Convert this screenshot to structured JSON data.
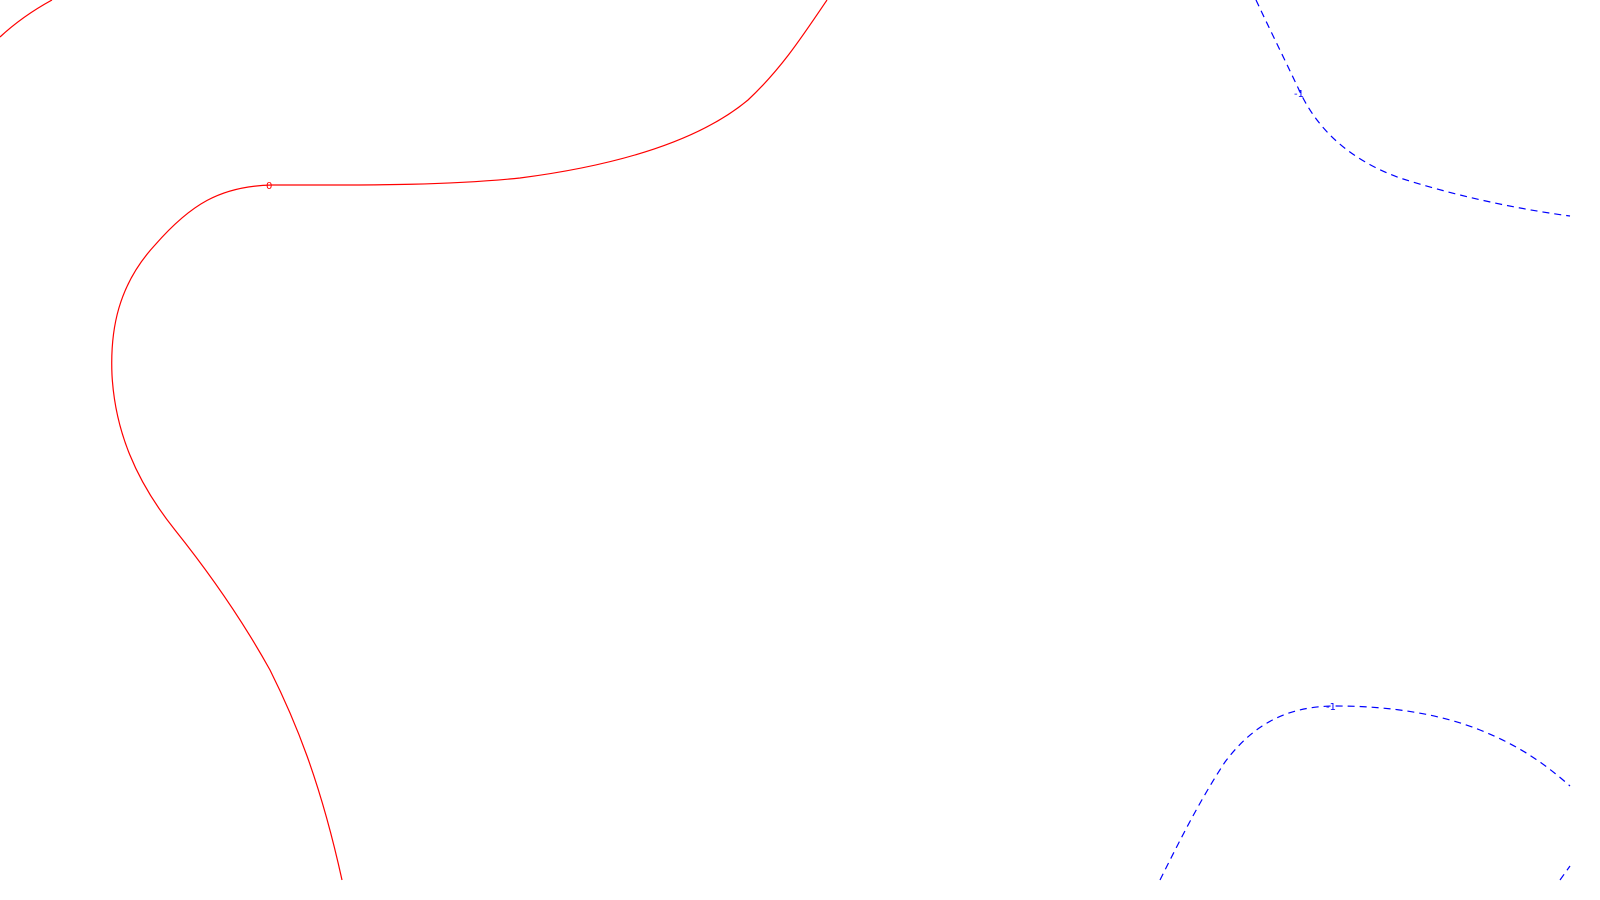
{
  "background_color": "#ffffff",
  "contours": [
    {
      "name": "contour-zero-main",
      "level_label": "0",
      "color": "#ff0000",
      "style": "solid"
    },
    {
      "name": "contour-zero-corner",
      "level_label": "",
      "color": "#ff0000",
      "style": "solid"
    },
    {
      "name": "contour-neg1-top",
      "level_label": "-1",
      "color": "#0000ff",
      "style": "dashed"
    },
    {
      "name": "contour-neg1-bottom",
      "level_label": "-1",
      "color": "#0000ff",
      "style": "dashed"
    }
  ]
}
